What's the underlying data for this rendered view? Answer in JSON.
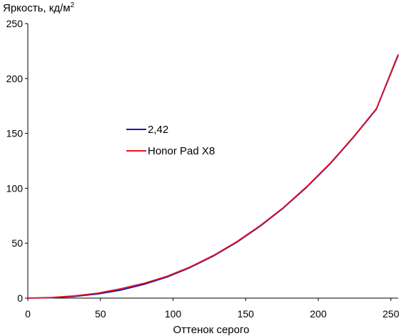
{
  "chart_data": {
    "type": "line",
    "ylabel": "Яркость, кд/м",
    "ylabel_sup": "2",
    "xlabel": "Оттенок серого",
    "xlim": [
      0,
      255
    ],
    "ylim": [
      0,
      250
    ],
    "x_ticks": [
      0,
      50,
      100,
      150,
      200,
      250
    ],
    "y_ticks": [
      0,
      50,
      100,
      150,
      200,
      250
    ],
    "grid": false,
    "legend_position": "center-left",
    "series": [
      {
        "name": "2,42",
        "color": "#1a1aa6",
        "x": [
          0,
          16,
          32,
          48,
          64,
          80,
          96,
          112,
          128,
          144,
          160,
          176,
          192,
          208,
          224,
          240,
          255
        ],
        "y": [
          0,
          0.3,
          1.5,
          3.8,
          7.3,
          12.5,
          19.3,
          28,
          38.5,
          51,
          65.5,
          82,
          101,
          122,
          146,
          172,
          221
        ]
      },
      {
        "name": "Honor Pad X8",
        "color": "#e8141e",
        "x": [
          0,
          16,
          32,
          48,
          64,
          80,
          96,
          112,
          128,
          144,
          160,
          176,
          192,
          208,
          224,
          240,
          255
        ],
        "y": [
          0,
          0.5,
          2,
          4.5,
          8.5,
          13.5,
          20,
          28.5,
          39,
          51.5,
          66,
          82.5,
          101.5,
          122.5,
          146.5,
          172.5,
          222
        ]
      }
    ]
  }
}
